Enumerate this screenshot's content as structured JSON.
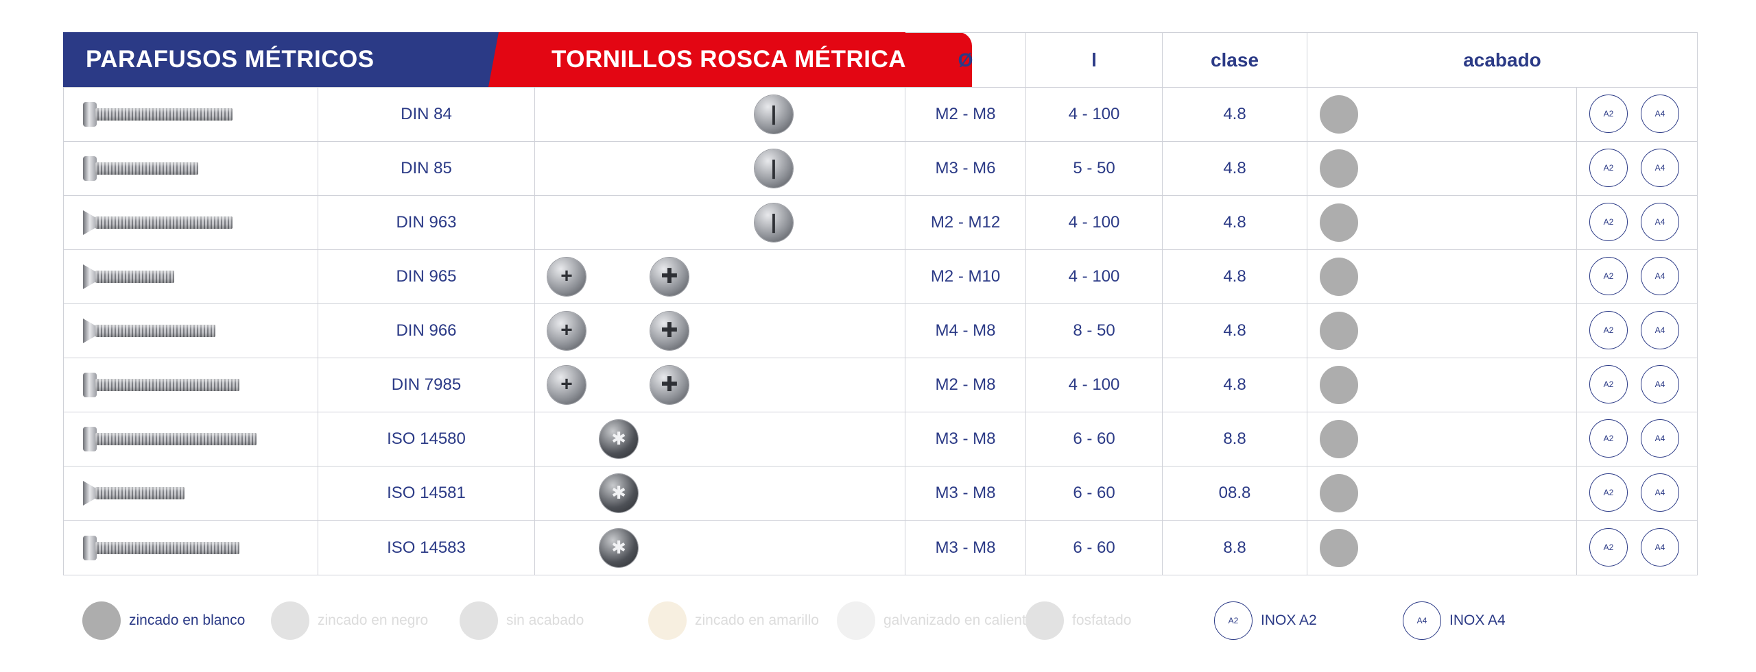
{
  "header": {
    "title_left": "PARAFUSOS MÉTRICOS",
    "title_right": "TORNILLOS ROSCA MÉTRICA",
    "col_diameter": "Ø",
    "col_length": "l",
    "col_class": "clase",
    "col_finish": "acabado"
  },
  "rows": [
    {
      "standard": "DIN 84",
      "diameter": "M2 - M8",
      "length": "4 - 100",
      "class": "4.8",
      "drive": "slot",
      "a2": "A2",
      "a4": "A4"
    },
    {
      "standard": "DIN 85",
      "diameter": "M3 - M6",
      "length": "5 - 50",
      "class": "4.8",
      "drive": "slot",
      "a2": "A2",
      "a4": "A4"
    },
    {
      "standard": "DIN 963",
      "diameter": "M2 - M12",
      "length": "4 - 100",
      "class": "4.8",
      "drive": "slot",
      "a2": "A2",
      "a4": "A4"
    },
    {
      "standard": "DIN 965",
      "diameter": "M2 - M10",
      "length": "4 - 100",
      "class": "4.8",
      "drive": "phillips-pozidriv",
      "a2": "A2",
      "a4": "A4"
    },
    {
      "standard": "DIN 966",
      "diameter": "M4 - M8",
      "length": "8 - 50",
      "class": "4.8",
      "drive": "phillips-pozidriv",
      "a2": "A2",
      "a4": "A4"
    },
    {
      "standard": "DIN 7985",
      "diameter": "M2 - M8",
      "length": "4 - 100",
      "class": "4.8",
      "drive": "phillips-pozidriv",
      "a2": "A2",
      "a4": "A4"
    },
    {
      "standard": "ISO 14580",
      "diameter": "M3 - M8",
      "length": "6 - 60",
      "class": "8.8",
      "drive": "torx",
      "a2": "A2",
      "a4": "A4"
    },
    {
      "standard": "ISO 14581",
      "diameter": "M3 - M8",
      "length": "6 - 60",
      "class": "08.8",
      "drive": "torx",
      "a2": "A2",
      "a4": "A4"
    },
    {
      "standard": "ISO 14583",
      "diameter": "M3 - M8",
      "length": "6 - 60",
      "class": "8.8",
      "drive": "torx",
      "a2": "A2",
      "a4": "A4"
    }
  ],
  "legend": [
    {
      "label": "zincado en blanco",
      "color": "#adadad",
      "active": true
    },
    {
      "label": "zincado en negro",
      "color": "#e2e2e2",
      "active": false
    },
    {
      "label": "sin acabado",
      "color": "#e2e2e2",
      "active": false
    },
    {
      "label": "zincado en amarillo",
      "color": "#f7efe0",
      "active": false
    },
    {
      "label": "galvanizado en caliente",
      "color": "#f1f1f1",
      "active": false
    },
    {
      "label": "fosfatado",
      "color": "#e2e2e2",
      "active": false
    },
    {
      "label": "INOX A2",
      "badge": "A2",
      "active": true
    },
    {
      "label": "INOX A4",
      "badge": "A4",
      "active": true
    }
  ],
  "colors": {
    "brand_blue": "#2b3a86",
    "brand_red": "#e30613",
    "finish_zinc_white": "#adadad",
    "grid_line": "#cfd1d8"
  }
}
